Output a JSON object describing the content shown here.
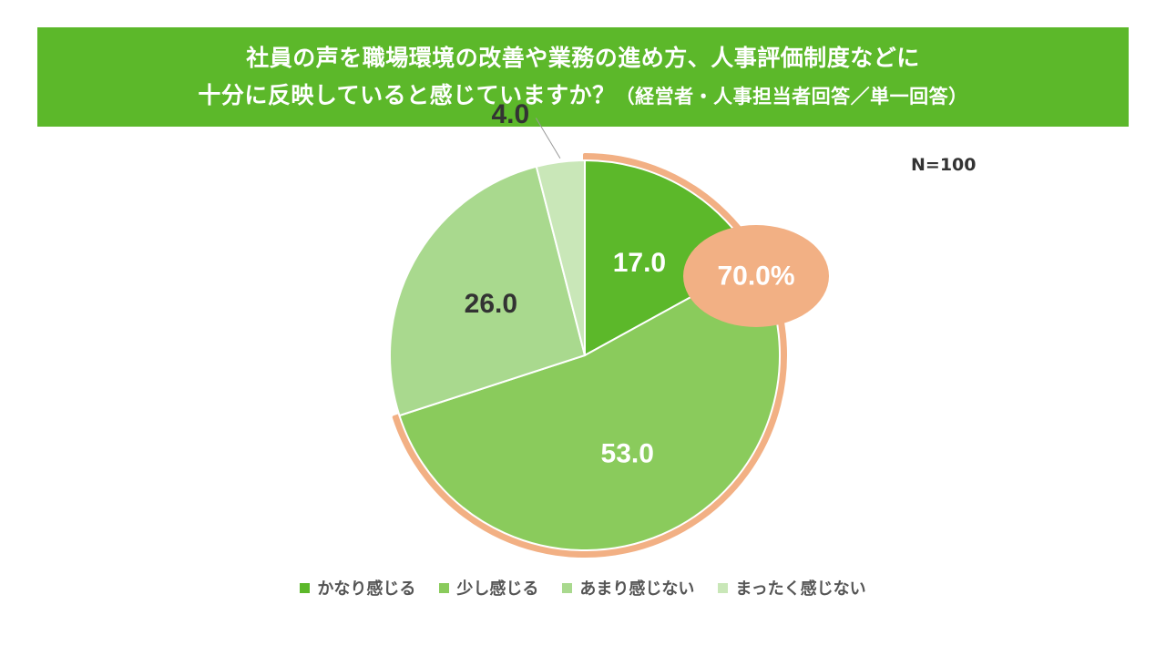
{
  "title": {
    "line1": "社員の声を職場環境の改善や業務の進め方、人事評価制度などに",
    "line2_main": "十分に反映していると感じていますか？",
    "line2_note": "（経営者・人事担当者回答／単一回答）"
  },
  "sample_size": "N=100",
  "colors": {
    "banner": "#5cb82a",
    "highlight": "#f2b084",
    "slice_1": "#5cb82a",
    "slice_2": "#8acb5c",
    "slice_3": "#a9d98e",
    "slice_4": "#c9e7b8"
  },
  "chart_data": {
    "type": "pie",
    "categories": [
      "かなり感じる",
      "少し感じる",
      "あまり感じない",
      "まったく感じない"
    ],
    "values": [
      17.0,
      53.0,
      26.0,
      4.0
    ],
    "value_labels": [
      "17.0",
      "53.0",
      "26.0",
      "4.0"
    ],
    "highlight_callout": "70.0%",
    "highlight_slices": [
      "かなり感じる",
      "少し感じる"
    ],
    "legend_position": "bottom"
  }
}
